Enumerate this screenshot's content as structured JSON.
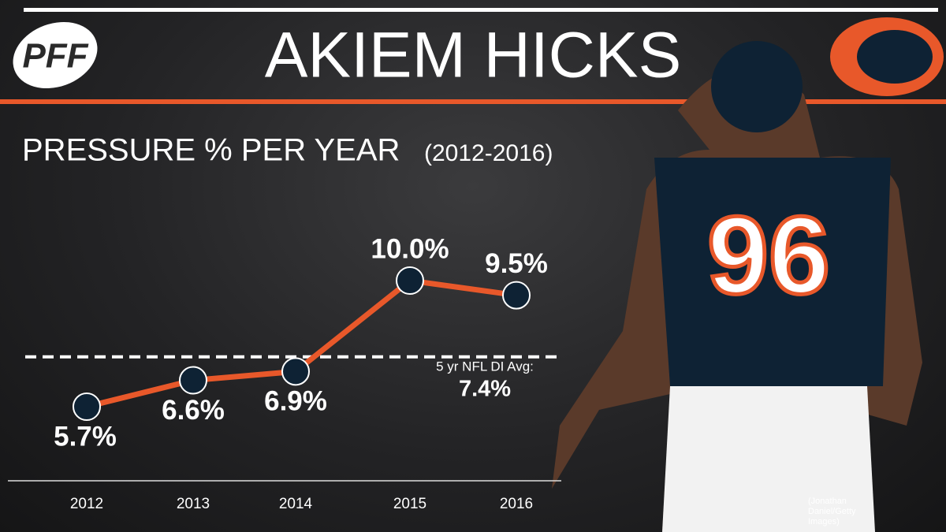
{
  "header": {
    "logo": "PFF",
    "title": "AKIEM HICKS"
  },
  "chart_data": {
    "type": "line",
    "title": "PRESSURE % PER YEAR",
    "subtitle": "(2012-2016)",
    "categories": [
      "2012",
      "2013",
      "2014",
      "2015",
      "2016"
    ],
    "values": [
      5.7,
      6.6,
      6.9,
      10.0,
      9.5
    ],
    "value_labels": [
      "5.7%",
      "6.6%",
      "6.9%",
      "10.0%",
      "9.5%"
    ],
    "color": "#e8582a",
    "marker_color": "#0e2234",
    "reference": {
      "label": "5 yr NFL DI Avg:",
      "value": 7.4,
      "value_label": "7.4%",
      "color": "#ffffff"
    }
  },
  "photo": {
    "jersey_number": "96",
    "credit": "(Jonathan Daniel/Getty Images)"
  }
}
